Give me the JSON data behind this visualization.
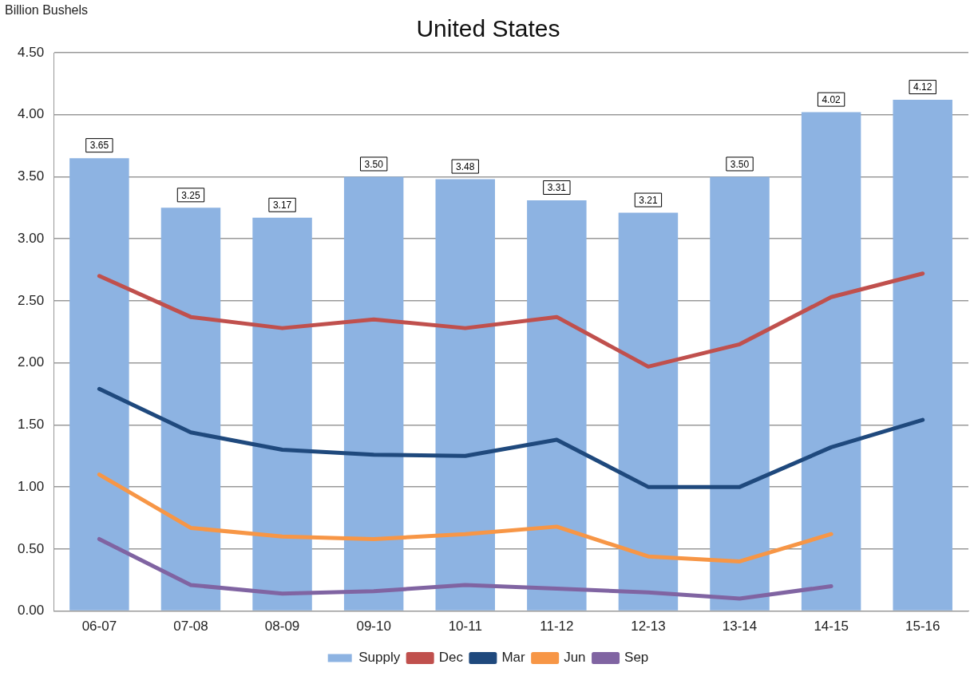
{
  "chart_data": {
    "type": "bar",
    "title": "United States",
    "ylabel": "Billion Bushels",
    "categories": [
      "06-07",
      "07-08",
      "08-09",
      "09-10",
      "10-11",
      "11-12",
      "12-13",
      "13-14",
      "14-15",
      "15-16"
    ],
    "series": [
      {
        "name": "Supply",
        "color": "#8db3e2",
        "values": [
          3.65,
          3.25,
          3.17,
          3.5,
          3.48,
          3.31,
          3.21,
          3.5,
          4.02,
          4.12
        ],
        "value_labels": [
          "3.65",
          "3.25",
          "3.17",
          "3.50",
          "3.48",
          "3.31",
          "3.21",
          "3.50",
          "4.02",
          "4.12"
        ]
      },
      {
        "name": "Dec",
        "type": "line",
        "color": "#c0504d",
        "values": [
          2.7,
          2.37,
          2.28,
          2.35,
          2.28,
          2.37,
          1.97,
          2.15,
          2.53,
          2.72
        ]
      },
      {
        "name": "Mar",
        "type": "line",
        "color": "#1f497d",
        "values": [
          1.79,
          1.44,
          1.3,
          1.26,
          1.25,
          1.38,
          1.0,
          1.0,
          1.32,
          1.54
        ]
      },
      {
        "name": "Jun",
        "type": "line",
        "color": "#f79646",
        "values": [
          1.1,
          0.67,
          0.6,
          0.58,
          0.62,
          0.68,
          0.44,
          0.4,
          0.62,
          null
        ]
      },
      {
        "name": "Sep",
        "type": "line",
        "color": "#8064a2",
        "values": [
          0.58,
          0.21,
          0.14,
          0.16,
          0.21,
          0.18,
          0.15,
          0.1,
          0.2,
          null
        ]
      }
    ],
    "ylim": [
      0,
      4.5
    ],
    "yticks": [
      {
        "value": 0,
        "label": "0.00"
      },
      {
        "value": 0.5,
        "label": "0.50"
      },
      {
        "value": 1,
        "label": "1.00"
      },
      {
        "value": 1.5,
        "label": "1.50"
      },
      {
        "value": 2,
        "label": "2.00"
      },
      {
        "value": 2.5,
        "label": "2.50"
      },
      {
        "value": 3,
        "label": "3.00"
      },
      {
        "value": 3.5,
        "label": "3.50"
      },
      {
        "value": 4,
        "label": "4.00"
      },
      {
        "value": 4.5,
        "label": "4.50"
      }
    ],
    "grid": "y",
    "legend": "bottom",
    "marker": "none"
  }
}
